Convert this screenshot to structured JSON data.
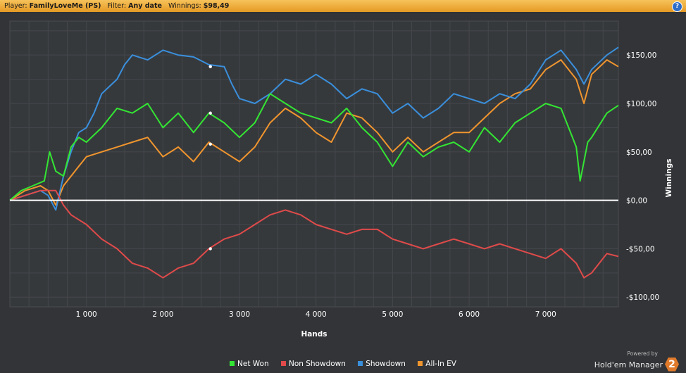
{
  "header": {
    "player_label": "Player:",
    "player_value": "FamilyLoveMe (PS)",
    "filter_label": "Filter:",
    "filter_value": "Any date",
    "winnings_label": "Winnings:",
    "winnings_value": "$98,49",
    "help_icon": "?"
  },
  "footer": {
    "powered_by": "Powered by",
    "brand": "Hold'em Manager",
    "brand_badge": "2"
  },
  "colors": {
    "background": "#323437",
    "net_won": "#33e633",
    "non_showdown": "#e04a4a",
    "showdown": "#3a8fdc",
    "allin_ev": "#f0952e",
    "zero_line": "#ffffff"
  },
  "chart_data": {
    "type": "line",
    "xlabel": "Hands",
    "ylabel": "Winnings",
    "xlim": [
      0,
      7950
    ],
    "ylim": [
      -110,
      185
    ],
    "x_ticks": [
      1000,
      2000,
      3000,
      4000,
      5000,
      6000,
      7000
    ],
    "x_tick_labels": [
      "1 000",
      "2 000",
      "3 000",
      "4 000",
      "5 000",
      "6 000",
      "7 000"
    ],
    "y_ticks": [
      150,
      100,
      50,
      0,
      -50,
      -100
    ],
    "y_tick_labels": [
      "$150,00",
      "$100,00",
      "$50,00",
      "$0,00",
      "-$50,00",
      "-$100,00"
    ],
    "grid": true,
    "legend_position": "bottom",
    "series": [
      {
        "name": "Net Won",
        "color": "#33e633",
        "x": [
          0,
          150,
          300,
          450,
          520,
          600,
          700,
          800,
          900,
          1000,
          1200,
          1400,
          1600,
          1800,
          2000,
          2200,
          2400,
          2600,
          2800,
          3000,
          3200,
          3400,
          3600,
          3800,
          4000,
          4200,
          4400,
          4600,
          4800,
          5000,
          5200,
          5400,
          5600,
          5800,
          6000,
          6200,
          6400,
          6600,
          6800,
          7000,
          7200,
          7400,
          7450,
          7500,
          7550,
          7600,
          7800,
          7950
        ],
        "y": [
          0,
          10,
          15,
          20,
          50,
          30,
          25,
          55,
          65,
          60,
          75,
          95,
          90,
          100,
          75,
          90,
          70,
          90,
          80,
          65,
          80,
          110,
          100,
          90,
          85,
          80,
          95,
          75,
          60,
          35,
          60,
          45,
          55,
          60,
          50,
          75,
          60,
          80,
          90,
          100,
          95,
          55,
          20,
          40,
          60,
          65,
          90,
          98
        ]
      },
      {
        "name": "Non Showdown",
        "color": "#e04a4a",
        "x": [
          0,
          200,
          400,
          600,
          700,
          800,
          1000,
          1200,
          1400,
          1600,
          1800,
          2000,
          2200,
          2400,
          2600,
          2800,
          3000,
          3200,
          3400,
          3600,
          3800,
          4000,
          4200,
          4400,
          4600,
          4800,
          5000,
          5200,
          5400,
          5600,
          5800,
          6000,
          6200,
          6400,
          6600,
          6800,
          7000,
          7200,
          7400,
          7500,
          7600,
          7800,
          7950
        ],
        "y": [
          0,
          5,
          10,
          10,
          -5,
          -15,
          -25,
          -40,
          -50,
          -65,
          -70,
          -80,
          -70,
          -65,
          -50,
          -40,
          -35,
          -25,
          -15,
          -10,
          -15,
          -25,
          -30,
          -35,
          -30,
          -30,
          -40,
          -45,
          -50,
          -45,
          -40,
          -45,
          -50,
          -45,
          -50,
          -55,
          -60,
          -50,
          -65,
          -80,
          -75,
          -55,
          -58
        ]
      },
      {
        "name": "Showdown",
        "color": "#3a8fdc",
        "x": [
          0,
          200,
          400,
          500,
          600,
          700,
          800,
          900,
          1000,
          1100,
          1200,
          1400,
          1500,
          1600,
          1800,
          2000,
          2200,
          2400,
          2600,
          2800,
          2900,
          3000,
          3200,
          3400,
          3600,
          3800,
          4000,
          4200,
          4400,
          4600,
          4800,
          5000,
          5200,
          5400,
          5600,
          5800,
          6000,
          6200,
          6400,
          6600,
          6800,
          7000,
          7200,
          7400,
          7500,
          7600,
          7800,
          7950
        ],
        "y": [
          0,
          5,
          10,
          5,
          -10,
          25,
          50,
          70,
          75,
          90,
          110,
          125,
          140,
          150,
          145,
          155,
          150,
          148,
          140,
          138,
          120,
          105,
          100,
          110,
          125,
          120,
          130,
          120,
          105,
          115,
          110,
          90,
          100,
          85,
          95,
          110,
          105,
          100,
          110,
          105,
          120,
          145,
          155,
          135,
          120,
          135,
          150,
          158
        ]
      },
      {
        "name": "All-In EV",
        "color": "#f0952e",
        "x": [
          0,
          200,
          400,
          500,
          600,
          700,
          800,
          900,
          1000,
          1200,
          1400,
          1600,
          1800,
          2000,
          2200,
          2400,
          2600,
          2800,
          3000,
          3200,
          3400,
          3600,
          3800,
          4000,
          4200,
          4400,
          4600,
          4800,
          5000,
          5200,
          5400,
          5600,
          5800,
          6000,
          6200,
          6400,
          6600,
          6800,
          7000,
          7200,
          7400,
          7500,
          7600,
          7800,
          7950
        ],
        "y": [
          0,
          10,
          15,
          10,
          -5,
          15,
          25,
          35,
          45,
          50,
          55,
          60,
          65,
          45,
          55,
          40,
          60,
          50,
          40,
          55,
          80,
          95,
          85,
          70,
          60,
          90,
          85,
          70,
          50,
          65,
          50,
          60,
          70,
          70,
          85,
          100,
          110,
          115,
          135,
          145,
          125,
          100,
          130,
          145,
          138
        ]
      }
    ],
    "annotations": [
      {
        "series": "Showdown",
        "x": 2620,
        "y": 138
      },
      {
        "series": "Net Won",
        "x": 2620,
        "y": 90
      },
      {
        "series": "All-In EV",
        "x": 2620,
        "y": 58
      },
      {
        "series": "Non Showdown",
        "x": 2620,
        "y": -50
      }
    ]
  }
}
